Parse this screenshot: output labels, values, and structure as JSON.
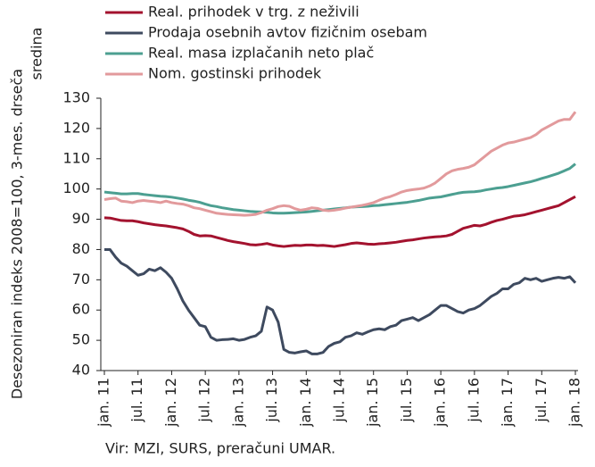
{
  "chart_data": {
    "type": "line",
    "y_label": [
      "Desezoniran indeks 2008=100, 3-mes. drseča",
      "sredina"
    ],
    "source": "Vir: MZI, SURS, preračuni UMAR.",
    "categories": [
      "jan. 11",
      null,
      null,
      null,
      null,
      null,
      "jul. 11",
      null,
      null,
      null,
      null,
      null,
      "jan. 12",
      null,
      null,
      null,
      null,
      null,
      "jul. 12",
      null,
      null,
      null,
      null,
      null,
      "jan. 13",
      null,
      null,
      null,
      null,
      null,
      "jul. 13",
      null,
      null,
      null,
      null,
      null,
      "jan. 14",
      null,
      null,
      null,
      null,
      null,
      "jul. 14",
      null,
      null,
      null,
      null,
      null,
      "jan. 15",
      null,
      null,
      null,
      null,
      null,
      "jul. 15",
      null,
      null,
      null,
      null,
      null,
      "jan. 16",
      null,
      null,
      null,
      null,
      null,
      "jul. 16",
      null,
      null,
      null,
      null,
      null,
      "jan. 17",
      null,
      null,
      null,
      null,
      null,
      "jul. 17",
      null,
      null,
      null,
      null,
      null,
      "jan. 18"
    ],
    "ylim": [
      40,
      130
    ],
    "yticks": [
      40,
      50,
      60,
      70,
      80,
      90,
      100,
      110,
      120,
      130
    ],
    "grid": false,
    "series": [
      {
        "name": "Real. prihodek v trg. z neživili",
        "color": "#a3122e",
        "values": [
          90.5,
          90.4,
          90.0,
          89.6,
          89.5,
          89.5,
          89.2,
          88.8,
          88.5,
          88.2,
          88.0,
          87.8,
          87.5,
          87.2,
          86.8,
          86.0,
          85.0,
          84.5,
          84.6,
          84.5,
          84.0,
          83.5,
          83.0,
          82.6,
          82.3,
          82.0,
          81.6,
          81.5,
          81.7,
          82.0,
          81.5,
          81.2,
          81.0,
          81.2,
          81.4,
          81.3,
          81.5,
          81.5,
          81.3,
          81.4,
          81.2,
          81.0,
          81.3,
          81.6,
          82.0,
          82.2,
          82.0,
          81.8,
          81.7,
          81.9,
          82.0,
          82.2,
          82.4,
          82.7,
          83.0,
          83.2,
          83.5,
          83.8,
          84.0,
          84.2,
          84.3,
          84.5,
          85.0,
          86.0,
          87.0,
          87.5,
          88.0,
          87.8,
          88.3,
          89.0,
          89.6,
          90.0,
          90.5,
          91.0,
          91.2,
          91.5,
          92.0,
          92.5,
          93.0,
          93.5,
          94.0,
          94.5,
          95.5,
          96.5,
          97.5
        ]
      },
      {
        "name": "Prodaja osebnih avtov fizičnim osebam",
        "color": "#3e4a5f",
        "values": [
          80,
          80,
          77.5,
          75.5,
          74.5,
          73,
          71.5,
          72,
          73.5,
          73,
          74,
          72.5,
          70.5,
          67,
          63,
          60,
          57.5,
          55,
          54.5,
          51,
          50,
          50.2,
          50.3,
          50.5,
          50,
          50.3,
          51,
          51.5,
          53,
          61,
          60,
          56,
          47,
          46,
          45.8,
          46.2,
          46.5,
          45.5,
          45.5,
          46,
          48,
          49,
          49.5,
          51,
          51.5,
          52.5,
          52,
          52.8,
          53.5,
          53.8,
          53.5,
          54.5,
          55,
          56.5,
          57,
          57.5,
          56.5,
          57.5,
          58.5,
          60,
          61.5,
          61.5,
          60.5,
          59.5,
          59,
          60,
          60.5,
          61.5,
          63,
          64.5,
          65.5,
          67,
          67,
          68.5,
          69,
          70.5,
          70,
          70.5,
          69.5,
          70,
          70.5,
          70.8,
          70.5,
          71,
          69
        ]
      },
      {
        "name": "Real. masa izplačanih neto plač",
        "color": "#4c9f91",
        "values": [
          99,
          98.8,
          98.6,
          98.4,
          98.4,
          98.5,
          98.5,
          98.2,
          98,
          97.8,
          97.6,
          97.5,
          97.3,
          97,
          96.7,
          96.3,
          96,
          95.6,
          95,
          94.5,
          94.2,
          93.8,
          93.5,
          93.2,
          93,
          92.8,
          92.6,
          92.5,
          92.4,
          92.3,
          92.1,
          92,
          92,
          92.1,
          92.2,
          92.3,
          92.4,
          92.6,
          92.8,
          93,
          93.2,
          93.4,
          93.6,
          93.8,
          94,
          94.1,
          94.2,
          94.3,
          94.5,
          94.6,
          94.8,
          95,
          95.2,
          95.4,
          95.6,
          95.9,
          96.2,
          96.6,
          97,
          97.2,
          97.4,
          97.8,
          98.2,
          98.6,
          98.9,
          99,
          99.1,
          99.3,
          99.7,
          100,
          100.3,
          100.5,
          100.8,
          101.2,
          101.6,
          102,
          102.4,
          102.9,
          103.5,
          104,
          104.6,
          105.2,
          106,
          106.8,
          108.3
        ]
      },
      {
        "name": "Nom. gostinski prihodek",
        "color": "#e29a9c",
        "values": [
          96.5,
          96.8,
          97,
          96,
          95.8,
          95.5,
          96,
          96.2,
          96,
          95.8,
          95.5,
          96,
          95.5,
          95.2,
          95,
          94.5,
          93.8,
          93.5,
          93,
          92.5,
          92,
          91.8,
          91.6,
          91.5,
          91.4,
          91.3,
          91.4,
          91.6,
          92.2,
          93,
          93.5,
          94.2,
          94.5,
          94.3,
          93.5,
          93,
          93.3,
          93.8,
          93.6,
          93,
          92.8,
          93,
          93.3,
          93.7,
          94,
          94.3,
          94.6,
          95,
          95.5,
          96.3,
          97,
          97.5,
          98.2,
          99,
          99.5,
          99.8,
          100,
          100.3,
          101,
          102,
          103.5,
          105,
          106,
          106.5,
          106.8,
          107.2,
          108,
          109.5,
          111,
          112.5,
          113.5,
          114.5,
          115.2,
          115.5,
          116,
          116.5,
          117,
          118,
          119.5,
          120.5,
          121.5,
          122.5,
          123,
          123,
          125.5
        ]
      }
    ]
  }
}
